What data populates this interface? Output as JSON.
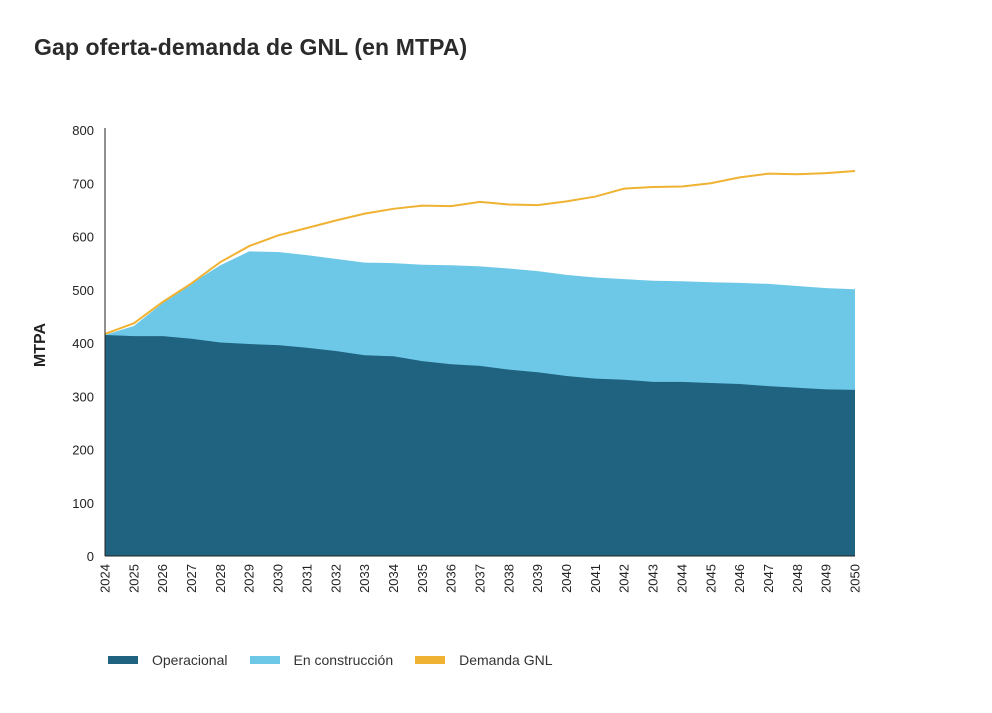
{
  "chart_data": {
    "type": "area",
    "title": "Gap oferta-demanda de GNL (en MTPA)",
    "ylabel": "MTPA",
    "xlabel": "",
    "ylim": [
      0,
      800
    ],
    "yticks": [
      0,
      100,
      200,
      300,
      400,
      500,
      600,
      700,
      800
    ],
    "x": [
      2024,
      2025,
      2026,
      2027,
      2028,
      2029,
      2030,
      2031,
      2032,
      2033,
      2034,
      2035,
      2036,
      2037,
      2038,
      2039,
      2040,
      2041,
      2042,
      2043,
      2044,
      2045,
      2046,
      2047,
      2048,
      2049,
      2050
    ],
    "x_labels": [
      "2024",
      "2025",
      "2026",
      "2027",
      "2028",
      "2029",
      "2030",
      "2031",
      "2032",
      "2033",
      "2034",
      "2035",
      "2036",
      "2037",
      "2038",
      "2039",
      "2040",
      "2041",
      "2042",
      "2043",
      "2044",
      "2045",
      "2046",
      "2047",
      "2048",
      "2049",
      "2050"
    ],
    "series": [
      {
        "name": "Operacional",
        "kind": "area",
        "color": "#1f6380",
        "values": [
          415,
          413,
          413,
          408,
          401,
          398,
          396,
          391,
          385,
          377,
          375,
          366,
          360,
          357,
          350,
          345,
          338,
          333,
          331,
          327,
          327,
          325,
          323,
          319,
          316,
          313,
          312
        ]
      },
      {
        "name": "En construcción",
        "kind": "stacked-area-top",
        "color": "#6dc8e8",
        "values": [
          415,
          432,
          475,
          512,
          546,
          572,
          571,
          565,
          558,
          551,
          550,
          547,
          546,
          544,
          540,
          535,
          528,
          523,
          520,
          517,
          516,
          514,
          513,
          511,
          507,
          503,
          501
        ]
      },
      {
        "name": "Demanda GNL",
        "kind": "line",
        "color": "#f0b232",
        "values": [
          417,
          437,
          477,
          512,
          552,
          582,
          602,
          616,
          630,
          643,
          652,
          658,
          657,
          665,
          660,
          659,
          666,
          675,
          690,
          693,
          694,
          700,
          711,
          718,
          717,
          719,
          723
        ]
      }
    ],
    "grid": false,
    "legend": "bottom-left"
  }
}
